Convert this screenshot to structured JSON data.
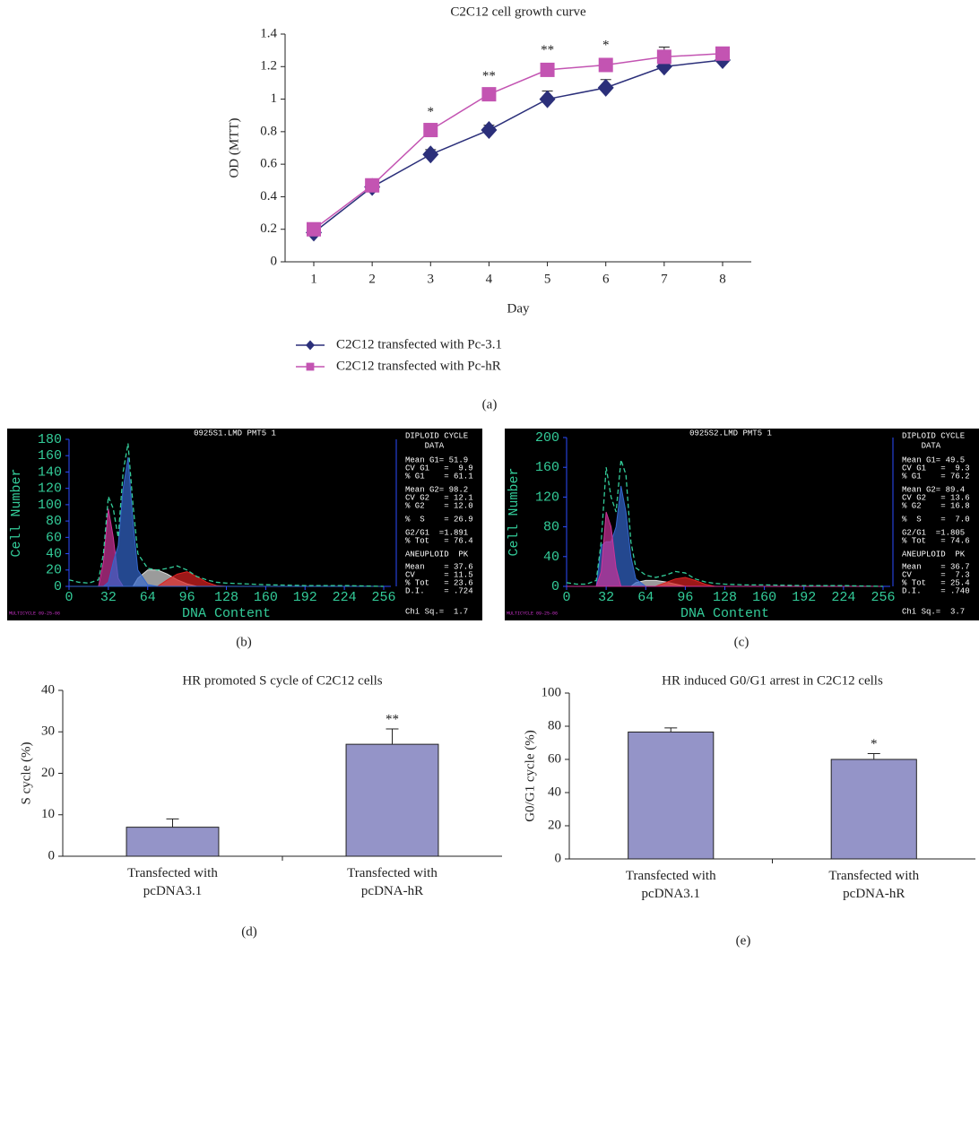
{
  "chart_data": [
    {
      "type": "line",
      "panel": "(a)",
      "title": "C2C12 cell growth curve",
      "xlabel": "Day",
      "ylabel": "OD (MTT)",
      "categories": [
        "1",
        "2",
        "3",
        "4",
        "5",
        "6",
        "7",
        "8"
      ],
      "ylim": [
        0,
        1.4
      ],
      "yticks": [
        0,
        0.2,
        0.4,
        0.6,
        0.8,
        1,
        1.2,
        1.4
      ],
      "series": [
        {
          "name": "C2C12 transfected with Pc-3.1",
          "color": "#2b2f7a",
          "marker": "diamond",
          "values": [
            0.18,
            0.46,
            0.66,
            0.81,
            1.0,
            1.07,
            1.2,
            1.24
          ],
          "errors": [
            0.01,
            0.01,
            0.03,
            0.03,
            0.05,
            0.05,
            0.02,
            0.02
          ]
        },
        {
          "name": "C2C12 transfected with Pc-hR",
          "color": "#c354b2",
          "marker": "square",
          "values": [
            0.2,
            0.47,
            0.81,
            1.03,
            1.18,
            1.21,
            1.26,
            1.28
          ],
          "errors": [
            0.01,
            0.01,
            0.03,
            0.03,
            0.04,
            0.04,
            0.06,
            0.04
          ]
        }
      ],
      "annotations": [
        {
          "category": "3",
          "text": "*"
        },
        {
          "category": "4",
          "text": "**"
        },
        {
          "category": "5",
          "text": "**"
        },
        {
          "category": "6",
          "text": "*"
        }
      ]
    },
    {
      "type": "area",
      "panel": "(b)",
      "title": "0925S1.LMD PMT5 1",
      "xlabel": "DNA Content",
      "ylabel": "Cell Number",
      "x": [
        0,
        8,
        16,
        24,
        28,
        32,
        36,
        40,
        44,
        48,
        52,
        56,
        64,
        72,
        80,
        88,
        96,
        104,
        112,
        120,
        128,
        144,
        160,
        192,
        224,
        256
      ],
      "xlim": [
        0,
        256
      ],
      "xticks": [
        0,
        32,
        64,
        96,
        128,
        160,
        192,
        224,
        256
      ],
      "ylim": [
        0,
        180
      ],
      "yticks": [
        0,
        20,
        40,
        60,
        80,
        100,
        120,
        140,
        160,
        180
      ],
      "series": [
        {
          "color": "#dddddd",
          "style": "filled",
          "values": [
            0,
            0,
            0,
            0,
            0,
            0,
            0,
            0,
            0,
            0,
            0,
            10,
            20,
            20,
            15,
            8,
            3,
            0,
            0,
            0,
            0,
            0,
            0,
            0,
            0,
            0
          ]
        },
        {
          "color": "#dd2222",
          "style": "filled",
          "values": [
            0,
            0,
            0,
            0,
            0,
            0,
            0,
            0,
            0,
            0,
            0,
            0,
            0,
            0,
            8,
            15,
            18,
            12,
            5,
            1,
            0,
            0,
            0,
            0,
            0,
            0
          ]
        },
        {
          "color": "#cc3399",
          "style": "filled",
          "values": [
            0,
            0,
            0,
            0,
            30,
            95,
            60,
            10,
            0,
            0,
            0,
            0,
            0,
            0,
            0,
            0,
            0,
            0,
            0,
            0,
            0,
            0,
            0,
            0,
            0,
            0
          ]
        },
        {
          "color": "#3366cc",
          "style": "filled",
          "values": [
            0,
            0,
            0,
            0,
            0,
            5,
            30,
            50,
            120,
            158,
            80,
            20,
            2,
            0,
            0,
            0,
            0,
            0,
            0,
            0,
            0,
            0,
            0,
            0,
            0,
            0
          ]
        },
        {
          "color": "#33cc99",
          "style": "dashed",
          "values": [
            8,
            5,
            4,
            8,
            40,
            110,
            95,
            60,
            140,
            175,
            100,
            40,
            22,
            20,
            22,
            25,
            20,
            12,
            8,
            5,
            4,
            3,
            2,
            1,
            1,
            0
          ]
        }
      ],
      "stats": [
        "DIPLOID CYCLE",
        "    DATA",
        "Mean G1= 51.9",
        "CV G1   =  9.9",
        "% G1    = 61.1",
        "Mean G2= 98.2",
        "CV G2   = 12.1",
        "% G2    = 12.0",
        "%  S    = 26.9",
        "G2/G1  =1.891",
        "% Tot   = 76.4",
        "ANEUPLOID  PK",
        "Mean    = 37.6",
        "CV      = 11.5",
        "% Tot   = 23.6",
        "D.I.    = .724"
      ],
      "footer": "Chi Sq.=  1.7",
      "note": "MULTICYCLE 09-25-06"
    },
    {
      "type": "area",
      "panel": "(c)",
      "title": "0925S2.LMD PMT5 1",
      "xlabel": "DNA Content",
      "ylabel": "Cell Number",
      "x": [
        0,
        8,
        16,
        24,
        28,
        32,
        36,
        40,
        44,
        48,
        52,
        56,
        64,
        72,
        80,
        88,
        96,
        104,
        112,
        120,
        128,
        144,
        160,
        192,
        224,
        256
      ],
      "xlim": [
        0,
        256
      ],
      "xticks": [
        0,
        32,
        64,
        96,
        128,
        160,
        192,
        224,
        256
      ],
      "ylim": [
        0,
        200
      ],
      "yticks": [
        0,
        40,
        80,
        120,
        160,
        200
      ],
      "series": [
        {
          "color": "#dddddd",
          "style": "filled",
          "values": [
            0,
            0,
            0,
            0,
            0,
            0,
            0,
            0,
            0,
            0,
            0,
            5,
            8,
            8,
            6,
            3,
            0,
            0,
            0,
            0,
            0,
            0,
            0,
            0,
            0,
            0
          ]
        },
        {
          "color": "#dd2222",
          "style": "filled",
          "values": [
            0,
            0,
            0,
            0,
            0,
            0,
            0,
            0,
            0,
            0,
            0,
            0,
            0,
            0,
            5,
            10,
            12,
            8,
            3,
            0,
            0,
            0,
            0,
            0,
            0,
            0
          ]
        },
        {
          "color": "#3366cc",
          "style": "filled",
          "values": [
            0,
            0,
            0,
            0,
            55,
            60,
            60,
            80,
            135,
            100,
            40,
            10,
            0,
            0,
            0,
            0,
            0,
            0,
            0,
            0,
            0,
            0,
            0,
            0,
            0,
            0
          ]
        },
        {
          "color": "#cc3399",
          "style": "filled",
          "values": [
            0,
            0,
            0,
            0,
            20,
            100,
            80,
            25,
            0,
            0,
            0,
            0,
            0,
            0,
            0,
            0,
            0,
            0,
            0,
            0,
            0,
            0,
            0,
            0,
            0,
            0
          ]
        },
        {
          "color": "#33cc99",
          "style": "dashed",
          "values": [
            5,
            3,
            3,
            8,
            60,
            160,
            120,
            100,
            170,
            150,
            60,
            25,
            15,
            12,
            15,
            20,
            18,
            10,
            6,
            4,
            3,
            2,
            2,
            1,
            1,
            0
          ]
        }
      ],
      "stats": [
        "DIPLOID CYCLE",
        "    DATA",
        "Mean G1= 49.5",
        "CV G1   =  9.3",
        "% G1    = 76.2",
        "Mean G2= 89.4",
        "CV G2   = 13.6",
        "% G2    = 16.8",
        "%  S    =  7.0",
        "G2/G1  =1.805",
        "% Tot   = 74.6",
        "ANEUPLOID  PK",
        "Mean    = 36.7",
        "CV      =  7.3",
        "% Tot   = 25.4",
        "D.I.    = .740"
      ],
      "footer": "Chi Sq.=  3.7",
      "note": "MULTICYCLE 09-25-06"
    },
    {
      "type": "bar",
      "panel": "(d)",
      "title": "HR promoted S cycle of C2C12 cells",
      "ylabel": "S cycle (%)",
      "categories": [
        "Transfected with\npcDNA3.1",
        "Transfected with\npcDNA-hR"
      ],
      "values": [
        7,
        27
      ],
      "errors": [
        2,
        3.7
      ],
      "color": "#9494c8",
      "ylim": [
        0,
        40
      ],
      "yticks": [
        0,
        10,
        20,
        30,
        40
      ],
      "annotations": [
        {
          "category": "Transfected with\npcDNA-hR",
          "text": "**"
        }
      ]
    },
    {
      "type": "bar",
      "panel": "(e)",
      "title": "HR induced G0/G1 arrest in C2C12 cells",
      "ylabel": "G0/G1 cycle (%)",
      "categories": [
        "Transfected with\npcDNA3.1",
        "Transfected with\npcDNA-hR"
      ],
      "values": [
        76.5,
        60
      ],
      "errors": [
        2.5,
        3.5
      ],
      "color": "#9494c8",
      "ylim": [
        0,
        100
      ],
      "yticks": [
        0,
        20,
        40,
        60,
        80,
        100
      ],
      "annotations": [
        {
          "category": "Transfected with\npcDNA-hR",
          "text": "*"
        }
      ]
    }
  ]
}
